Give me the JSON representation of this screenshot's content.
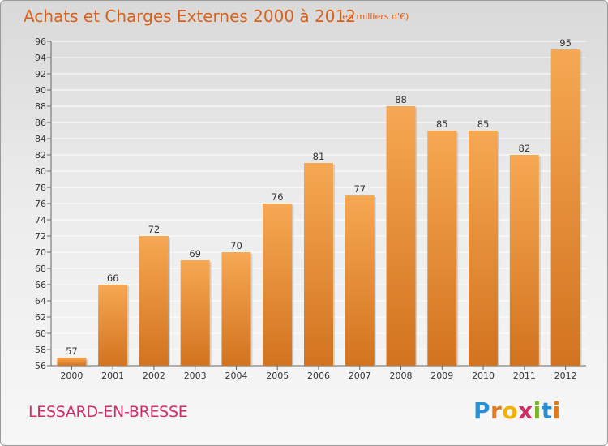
{
  "header": {
    "title": "Achats et Charges Externes 2000 à 2012",
    "unit_note": "(en milliers d'€)"
  },
  "footer": {
    "location": "LESSARD-EN-BRESSE",
    "brand_letters": [
      "P",
      "r",
      "o",
      "x",
      "i",
      "t",
      "i"
    ]
  },
  "colors": {
    "title": "#d8601a",
    "location": "#cf2f6a",
    "bar_top": "#f7a852",
    "bar_bottom": "#d2731f",
    "grid": "#ffffff"
  },
  "chart_data": {
    "type": "bar",
    "title": "Achats et Charges Externes 2000 à 2012",
    "subtitle": "(en milliers d'€)",
    "xlabel": "",
    "ylabel": "",
    "categories": [
      "2000",
      "2001",
      "2002",
      "2003",
      "2004",
      "2005",
      "2006",
      "2007",
      "2008",
      "2009",
      "2010",
      "2011",
      "2012"
    ],
    "values": [
      57,
      66,
      72,
      69,
      70,
      76,
      81,
      77,
      88,
      85,
      85,
      82,
      95
    ],
    "data_labels": [
      "57",
      "66",
      "72",
      "69",
      "70",
      "76",
      "81",
      "77",
      "88",
      "85",
      "85",
      "82",
      "95"
    ],
    "ylim": [
      56,
      96
    ],
    "yticks": [
      56,
      58,
      60,
      62,
      64,
      66,
      68,
      70,
      72,
      74,
      76,
      78,
      80,
      82,
      84,
      86,
      88,
      90,
      92,
      94,
      96
    ],
    "grid": true,
    "legend": "none"
  }
}
